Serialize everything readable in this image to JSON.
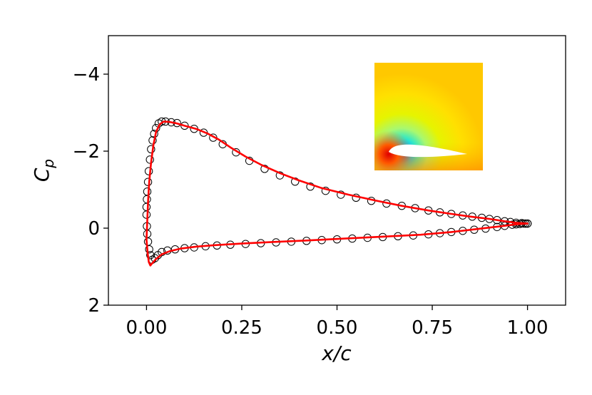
{
  "chart_data": {
    "type": "line",
    "xlabel": "x/c",
    "ylabel": "C_p",
    "ylabel_main": "C",
    "ylabel_sub": "p",
    "xlim": [
      -0.1,
      1.1
    ],
    "ylim": [
      2,
      -5
    ],
    "y_inverted": true,
    "x_ticks": [
      0.0,
      0.25,
      0.5,
      0.75,
      1.0
    ],
    "x_tick_labels": [
      "0.00",
      "0.25",
      "0.50",
      "0.75",
      "1.00"
    ],
    "y_ticks": [
      -4,
      -2,
      0,
      2
    ],
    "y_tick_labels": [
      "−4",
      "−2",
      "0",
      "2"
    ],
    "grid": false,
    "colors": {
      "line": "#ff0000",
      "markers": "#000000"
    },
    "series": [
      {
        "name": "reference (circles)",
        "style": "open-circle",
        "upper": {
          "x": [
            1.0,
            0.995,
            0.985,
            0.97,
            0.955,
            0.94,
            0.92,
            0.9,
            0.88,
            0.855,
            0.83,
            0.8,
            0.77,
            0.74,
            0.705,
            0.67,
            0.63,
            0.59,
            0.55,
            0.51,
            0.47,
            0.43,
            0.39,
            0.35,
            0.31,
            0.27,
            0.235,
            0.2,
            0.175,
            0.15,
            0.125,
            0.1,
            0.08,
            0.065,
            0.05,
            0.04,
            0.032,
            0.025,
            0.02,
            0.016,
            0.012,
            0.009,
            0.006,
            0.004,
            0.002,
            0.001,
            0.0
          ],
          "y": [
            -0.12,
            -0.12,
            -0.13,
            -0.14,
            -0.16,
            -0.18,
            -0.21,
            -0.24,
            -0.27,
            -0.3,
            -0.33,
            -0.37,
            -0.41,
            -0.46,
            -0.52,
            -0.58,
            -0.64,
            -0.71,
            -0.79,
            -0.87,
            -0.97,
            -1.08,
            -1.21,
            -1.37,
            -1.54,
            -1.75,
            -1.97,
            -2.18,
            -2.35,
            -2.48,
            -2.58,
            -2.66,
            -2.73,
            -2.75,
            -2.77,
            -2.77,
            -2.72,
            -2.6,
            -2.45,
            -2.28,
            -2.05,
            -1.78,
            -1.48,
            -1.2,
            -0.95,
            -0.75,
            -0.55
          ]
        },
        "lower": {
          "x": [
            0.0,
            0.001,
            0.002,
            0.004,
            0.007,
            0.01,
            0.015,
            0.022,
            0.03,
            0.04,
            0.055,
            0.075,
            0.1,
            0.125,
            0.155,
            0.185,
            0.22,
            0.26,
            0.3,
            0.34,
            0.38,
            0.42,
            0.46,
            0.5,
            0.54,
            0.58,
            0.62,
            0.66,
            0.7,
            0.74,
            0.77,
            0.8,
            0.83,
            0.86,
            0.89,
            0.92,
            0.94,
            0.96,
            0.97,
            0.98,
            0.99,
            0.995,
            1.0
          ],
          "y": [
            -0.35,
            -0.05,
            0.15,
            0.35,
            0.55,
            0.7,
            0.82,
            0.78,
            0.7,
            0.62,
            0.58,
            0.55,
            0.52,
            0.5,
            0.47,
            0.45,
            0.43,
            0.41,
            0.39,
            0.37,
            0.35,
            0.33,
            0.31,
            0.29,
            0.27,
            0.25,
            0.23,
            0.21,
            0.19,
            0.16,
            0.13,
            0.1,
            0.07,
            0.04,
            0.01,
            -0.03,
            -0.06,
            -0.09,
            -0.1,
            -0.11,
            -0.12,
            -0.12,
            -0.12
          ]
        }
      },
      {
        "name": "prediction (red line)",
        "style": "solid-line",
        "upper": {
          "x": [
            1.0,
            0.97,
            0.94,
            0.9,
            0.85,
            0.8,
            0.74,
            0.67,
            0.6,
            0.53,
            0.46,
            0.4,
            0.35,
            0.3,
            0.26,
            0.22,
            0.19,
            0.16,
            0.13,
            0.1,
            0.08,
            0.06,
            0.045,
            0.035,
            0.025,
            0.018,
            0.012,
            0.007,
            0.004,
            0.002,
            0.0
          ],
          "y": [
            -0.12,
            -0.14,
            -0.18,
            -0.24,
            -0.3,
            -0.37,
            -0.46,
            -0.58,
            -0.72,
            -0.87,
            -1.04,
            -1.24,
            -1.43,
            -1.65,
            -1.86,
            -2.1,
            -2.3,
            -2.46,
            -2.58,
            -2.66,
            -2.72,
            -2.76,
            -2.77,
            -2.7,
            -2.5,
            -2.15,
            -1.7,
            -1.2,
            -0.7,
            -0.2,
            0.3
          ]
        },
        "lower": {
          "x": [
            0.0,
            0.003,
            0.006,
            0.01,
            0.016,
            0.025,
            0.04,
            0.06,
            0.09,
            0.13,
            0.18,
            0.25,
            0.33,
            0.42,
            0.52,
            0.62,
            0.72,
            0.8,
            0.87,
            0.93,
            0.97,
            1.0
          ],
          "y": [
            0.3,
            0.65,
            0.88,
            0.97,
            0.9,
            0.8,
            0.68,
            0.6,
            0.53,
            0.48,
            0.44,
            0.4,
            0.36,
            0.32,
            0.27,
            0.22,
            0.17,
            0.1,
            0.02,
            -0.05,
            -0.1,
            -0.12
          ]
        }
      }
    ],
    "inset": {
      "type": "heatmap",
      "description": "pressure contour field around airfoil"
    }
  }
}
